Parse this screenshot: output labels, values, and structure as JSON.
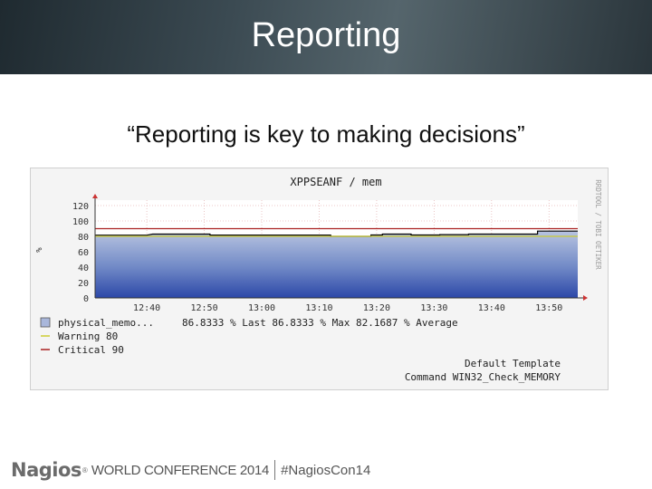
{
  "slide": {
    "title": "Reporting",
    "quote": "“Reporting is key to making decisions”"
  },
  "chart_data": {
    "type": "area",
    "title": "XPPSEANF / mem",
    "ylabel": "%",
    "side_label": "RRDTOOL / TOBI OETIKER",
    "ylim": [
      0,
      120
    ],
    "yticks": [
      "0",
      "20",
      "40",
      "60",
      "80",
      "100",
      "120"
    ],
    "x_time_range": [
      "12:31",
      "13:55"
    ],
    "xticks": [
      "12:40",
      "12:50",
      "13:00",
      "13:10",
      "13:20",
      "13:30",
      "13:40",
      "13:50"
    ],
    "grid": true,
    "series": [
      {
        "name": "physical_memo...",
        "values": [
          [
            "12:31",
            81.5
          ],
          [
            "12:40",
            81.5
          ],
          [
            "12:41",
            82.9
          ],
          [
            "12:51",
            82.9
          ],
          [
            "12:51",
            81.6
          ],
          [
            "13:12",
            81.6
          ],
          [
            "13:12",
            80.0
          ],
          [
            "13:19",
            80.0
          ],
          [
            "13:19",
            81.8
          ],
          [
            "13:21",
            81.8
          ],
          [
            "13:21",
            82.9
          ],
          [
            "13:26",
            82.9
          ],
          [
            "13:26",
            81.8
          ],
          [
            "13:31",
            81.8
          ],
          [
            "13:31",
            82.2
          ],
          [
            "13:36",
            82.2
          ],
          [
            "13:36",
            82.9
          ],
          [
            "13:48",
            82.9
          ],
          [
            "13:48",
            86.8
          ],
          [
            "13:55",
            86.8
          ]
        ]
      }
    ],
    "thresholds": [
      {
        "name": "Warning",
        "value": 80,
        "color": "#cccc33"
      },
      {
        "name": "Critical",
        "value": 90,
        "color": "#aa2222"
      }
    ],
    "legend": [
      {
        "swatch": "area",
        "label": "physical_memo...",
        "stats": "86.8333  % Last  86.8333  % Max  82.1687  % Average"
      },
      {
        "swatch": "warning",
        "label": "Warning  80",
        "stats": ""
      },
      {
        "swatch": "critical",
        "label": "Critical 90",
        "stats": ""
      }
    ],
    "footer": [
      "Default Template",
      "Command WIN32_Check_MEMORY"
    ]
  },
  "footer": {
    "brand": "Nagios",
    "registered": "®",
    "conference": "WORLD CONFERENCE 2014",
    "hashtag": "#NagiosCon14"
  }
}
